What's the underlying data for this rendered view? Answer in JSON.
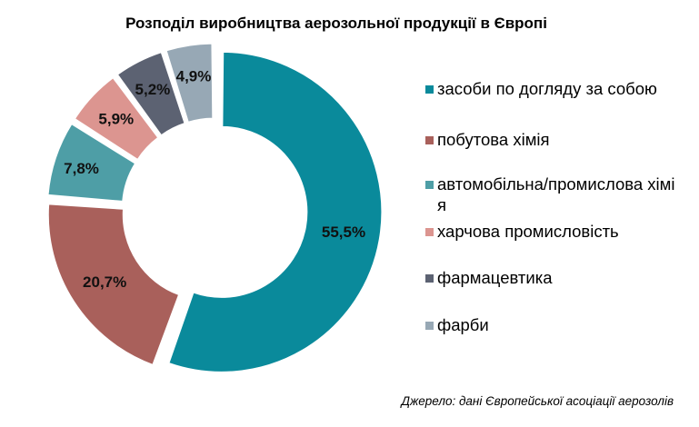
{
  "chart_data": {
    "type": "pie",
    "title": "Розподіл виробництва аерозольної продукції в Європі",
    "categories": [
      "засоби по догляду за собою",
      "побутова хімія",
      "автомобільна/промислова хімія",
      "харчова промисловість",
      "фармацевтика",
      "фарби"
    ],
    "values": [
      55.5,
      20.7,
      7.8,
      5.9,
      5.2,
      4.9
    ],
    "data_labels": [
      "55,5%",
      "20,7%",
      "7,8%",
      "5,9%",
      "5,2%",
      "4,9%"
    ],
    "colors": [
      "#0a8a9b",
      "#a9605b",
      "#4e9ea6",
      "#dc9590",
      "#5c6272",
      "#97a8b5"
    ],
    "legend": {
      "placement": "right",
      "items": [
        {
          "label": "засоби по догляду за собою",
          "color": "#0a8a9b"
        },
        {
          "label": "побутова хімія",
          "color": "#a9605b"
        },
        {
          "label": "автомобільна/промислова хімія",
          "color": "#4e9ea6"
        },
        {
          "label": "харчова промисловість",
          "color": "#dc9590"
        },
        {
          "label": "фармацевтика",
          "color": "#5c6272"
        },
        {
          "label": "фарби",
          "color": "#97a8b5"
        }
      ]
    },
    "style": "exploded-donut"
  },
  "source_note": "Джерело: дані Європейської асоціації аерозолів"
}
